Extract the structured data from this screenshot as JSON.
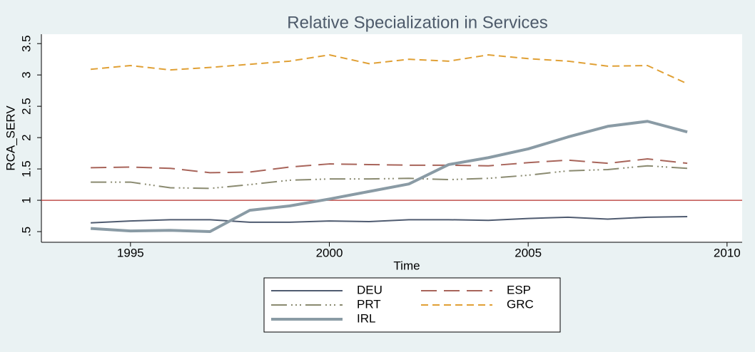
{
  "chart_data": {
    "type": "line",
    "title": "Relative Specialization in Services",
    "x_label": "Time",
    "y_label": "RCA_SERV",
    "x": [
      1994,
      1995,
      1996,
      1997,
      1998,
      1999,
      2000,
      2001,
      2002,
      2003,
      2004,
      2005,
      2006,
      2007,
      2008,
      2009
    ],
    "series": [
      {
        "name": "DEU",
        "color": "#4f5b70",
        "width": 2,
        "dash": "",
        "values": [
          0.64,
          0.67,
          0.69,
          0.69,
          0.65,
          0.65,
          0.67,
          0.66,
          0.69,
          0.69,
          0.68,
          0.71,
          0.73,
          0.7,
          0.73,
          0.74
        ]
      },
      {
        "name": "ESP",
        "color": "#a8645a",
        "width": 2,
        "dash": "22 10",
        "values": [
          1.52,
          1.53,
          1.51,
          1.44,
          1.45,
          1.53,
          1.58,
          1.57,
          1.56,
          1.56,
          1.55,
          1.6,
          1.64,
          1.59,
          1.66,
          1.59
        ]
      },
      {
        "name": "PRT",
        "color": "#8a8a70",
        "width": 2,
        "dash": "22 6 2 4 2 4 2 6",
        "values": [
          1.29,
          1.29,
          1.2,
          1.19,
          1.25,
          1.32,
          1.34,
          1.34,
          1.35,
          1.33,
          1.35,
          1.4,
          1.47,
          1.49,
          1.55,
          1.51
        ]
      },
      {
        "name": "GRC",
        "color": "#e0a035",
        "width": 2,
        "dash": "10 6",
        "values": [
          3.09,
          3.15,
          3.08,
          3.12,
          3.17,
          3.22,
          3.32,
          3.18,
          3.25,
          3.22,
          3.32,
          3.26,
          3.22,
          3.14,
          3.15,
          2.86
        ]
      },
      {
        "name": "IRL",
        "color": "#8a9ba5",
        "width": 4,
        "dash": "",
        "values": [
          0.55,
          0.51,
          0.52,
          0.5,
          0.84,
          0.91,
          1.02,
          1.14,
          1.26,
          1.57,
          1.68,
          1.82,
          2.01,
          2.18,
          2.26,
          2.09
        ]
      }
    ],
    "reference_line": {
      "value": 1,
      "color": "#c0504d"
    },
    "xlim": [
      1992.76,
      2010.38
    ],
    "xticks": [
      1995,
      2000,
      2005,
      2010
    ],
    "ylim": [
      0.33,
      3.65
    ],
    "yticks": [
      {
        "value": 0.5,
        "label": ".5"
      },
      1,
      1.5,
      2,
      2.5,
      3,
      3.5
    ],
    "grid": false,
    "legend_position": "bottom"
  }
}
